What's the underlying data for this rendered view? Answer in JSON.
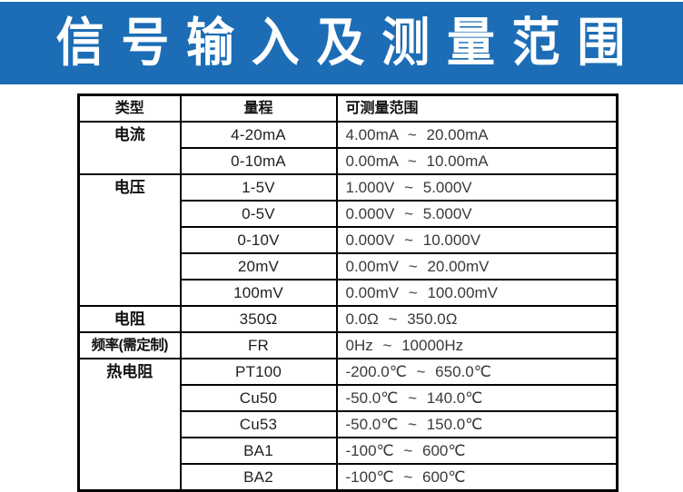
{
  "banner": {
    "title": "信 号 输 入 及 测 量 范 围",
    "bg_color": "#1c6db5",
    "text_color": "#ffffff"
  },
  "table": {
    "headers": {
      "type": "类型",
      "range": "量程",
      "measurable": "可测量范围"
    },
    "groups": {
      "current": {
        "label": "电流",
        "rows": [
          {
            "range": "4-20mA",
            "measurable": "4.00mA ~ 20.00mA"
          },
          {
            "range": "0-10mA",
            "measurable": "0.00mA ~ 10.00mA"
          }
        ]
      },
      "voltage": {
        "label": "电压",
        "rows": [
          {
            "range": "1-5V",
            "measurable": "1.000V ~ 5.000V"
          },
          {
            "range": "0-5V",
            "measurable": "0.000V ~ 5.000V"
          },
          {
            "range": "0-10V",
            "measurable": "0.000V ~ 10.000V"
          },
          {
            "range": "20mV",
            "measurable": "0.00mV ~ 20.00mV"
          },
          {
            "range": "100mV",
            "measurable": "0.00mV ~ 100.00mV"
          }
        ]
      },
      "resistance": {
        "label": "电阻",
        "rows": [
          {
            "range": "350Ω",
            "measurable": "0.0Ω ~ 350.0Ω"
          }
        ]
      },
      "frequency": {
        "label": "频率(需定制)",
        "rows": [
          {
            "range": "FR",
            "measurable": "0Hz ~ 10000Hz"
          }
        ]
      },
      "rtd": {
        "label": "热电阻",
        "rows": [
          {
            "range": "PT100",
            "measurable": "-200.0℃ ~ 650.0℃"
          },
          {
            "range": "Cu50",
            "measurable": "-50.0℃ ~ 140.0℃"
          },
          {
            "range": "Cu53",
            "measurable": "-50.0℃ ~ 150.0℃"
          },
          {
            "range": "BA1",
            "measurable": "-100℃ ~ 600℃"
          },
          {
            "range": "BA2",
            "measurable": "-100℃ ~ 600℃"
          }
        ]
      }
    }
  }
}
